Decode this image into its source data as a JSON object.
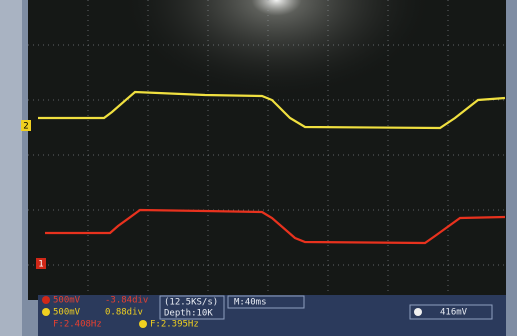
{
  "markers": {
    "ch2": "2",
    "ch1": "1"
  },
  "status_bar": {
    "ch1_scale": "500mV",
    "ch1_offset": "-3.84div",
    "ch2_scale": "500mV",
    "ch2_offset": "0.88div",
    "ch1_freq": "F:2.408Hz",
    "ch2_freq": "F:2.395Hz",
    "sample_rate": "(12.5KS/s)",
    "depth": "Depth:10K",
    "timebase": "M:40ms",
    "trigger_level": "416mV"
  }
}
